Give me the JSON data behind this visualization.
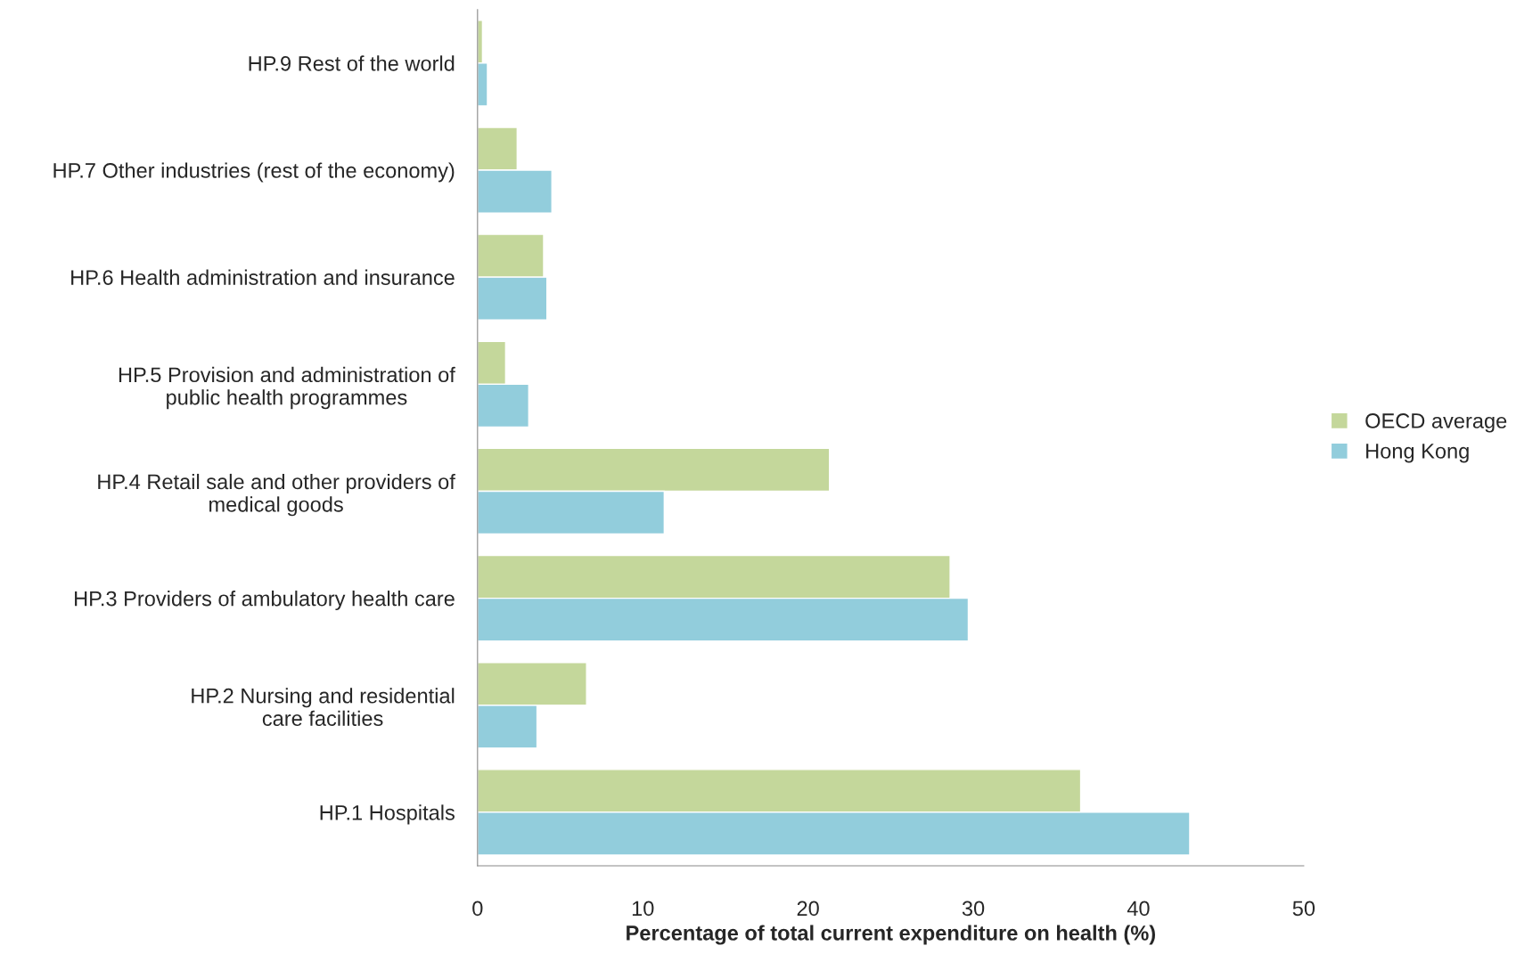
{
  "chart_data": {
    "type": "bar",
    "orientation": "horizontal",
    "xlabel": "Percentage of total current expenditure on health (%)",
    "categories": [
      "HP.9 Rest of the world",
      "HP.7 Other industries (rest of the economy)",
      "HP.6 Health administration and insurance",
      "HP.5 Provision and administration of\npublic health programmes",
      "HP.4 Retail sale and other providers of\nmedical goods",
      "HP.3 Providers of ambulatory health care",
      "HP.2 Nursing and residential\ncare facilities",
      "HP.1 Hospitals"
    ],
    "series": [
      {
        "name": "OECD average",
        "color": "#c4d79b",
        "values": [
          0.3,
          2.4,
          4.0,
          1.7,
          21.3,
          28.6,
          6.6,
          36.5
        ]
      },
      {
        "name": "Hong Kong",
        "color": "#92cddc",
        "values": [
          0.6,
          4.5,
          4.2,
          3.1,
          11.3,
          29.7,
          3.6,
          43.1
        ]
      }
    ],
    "xlim": [
      0,
      50
    ],
    "xticks": [
      0,
      10,
      20,
      30,
      40,
      50
    ],
    "grid": false,
    "legend": "right"
  }
}
